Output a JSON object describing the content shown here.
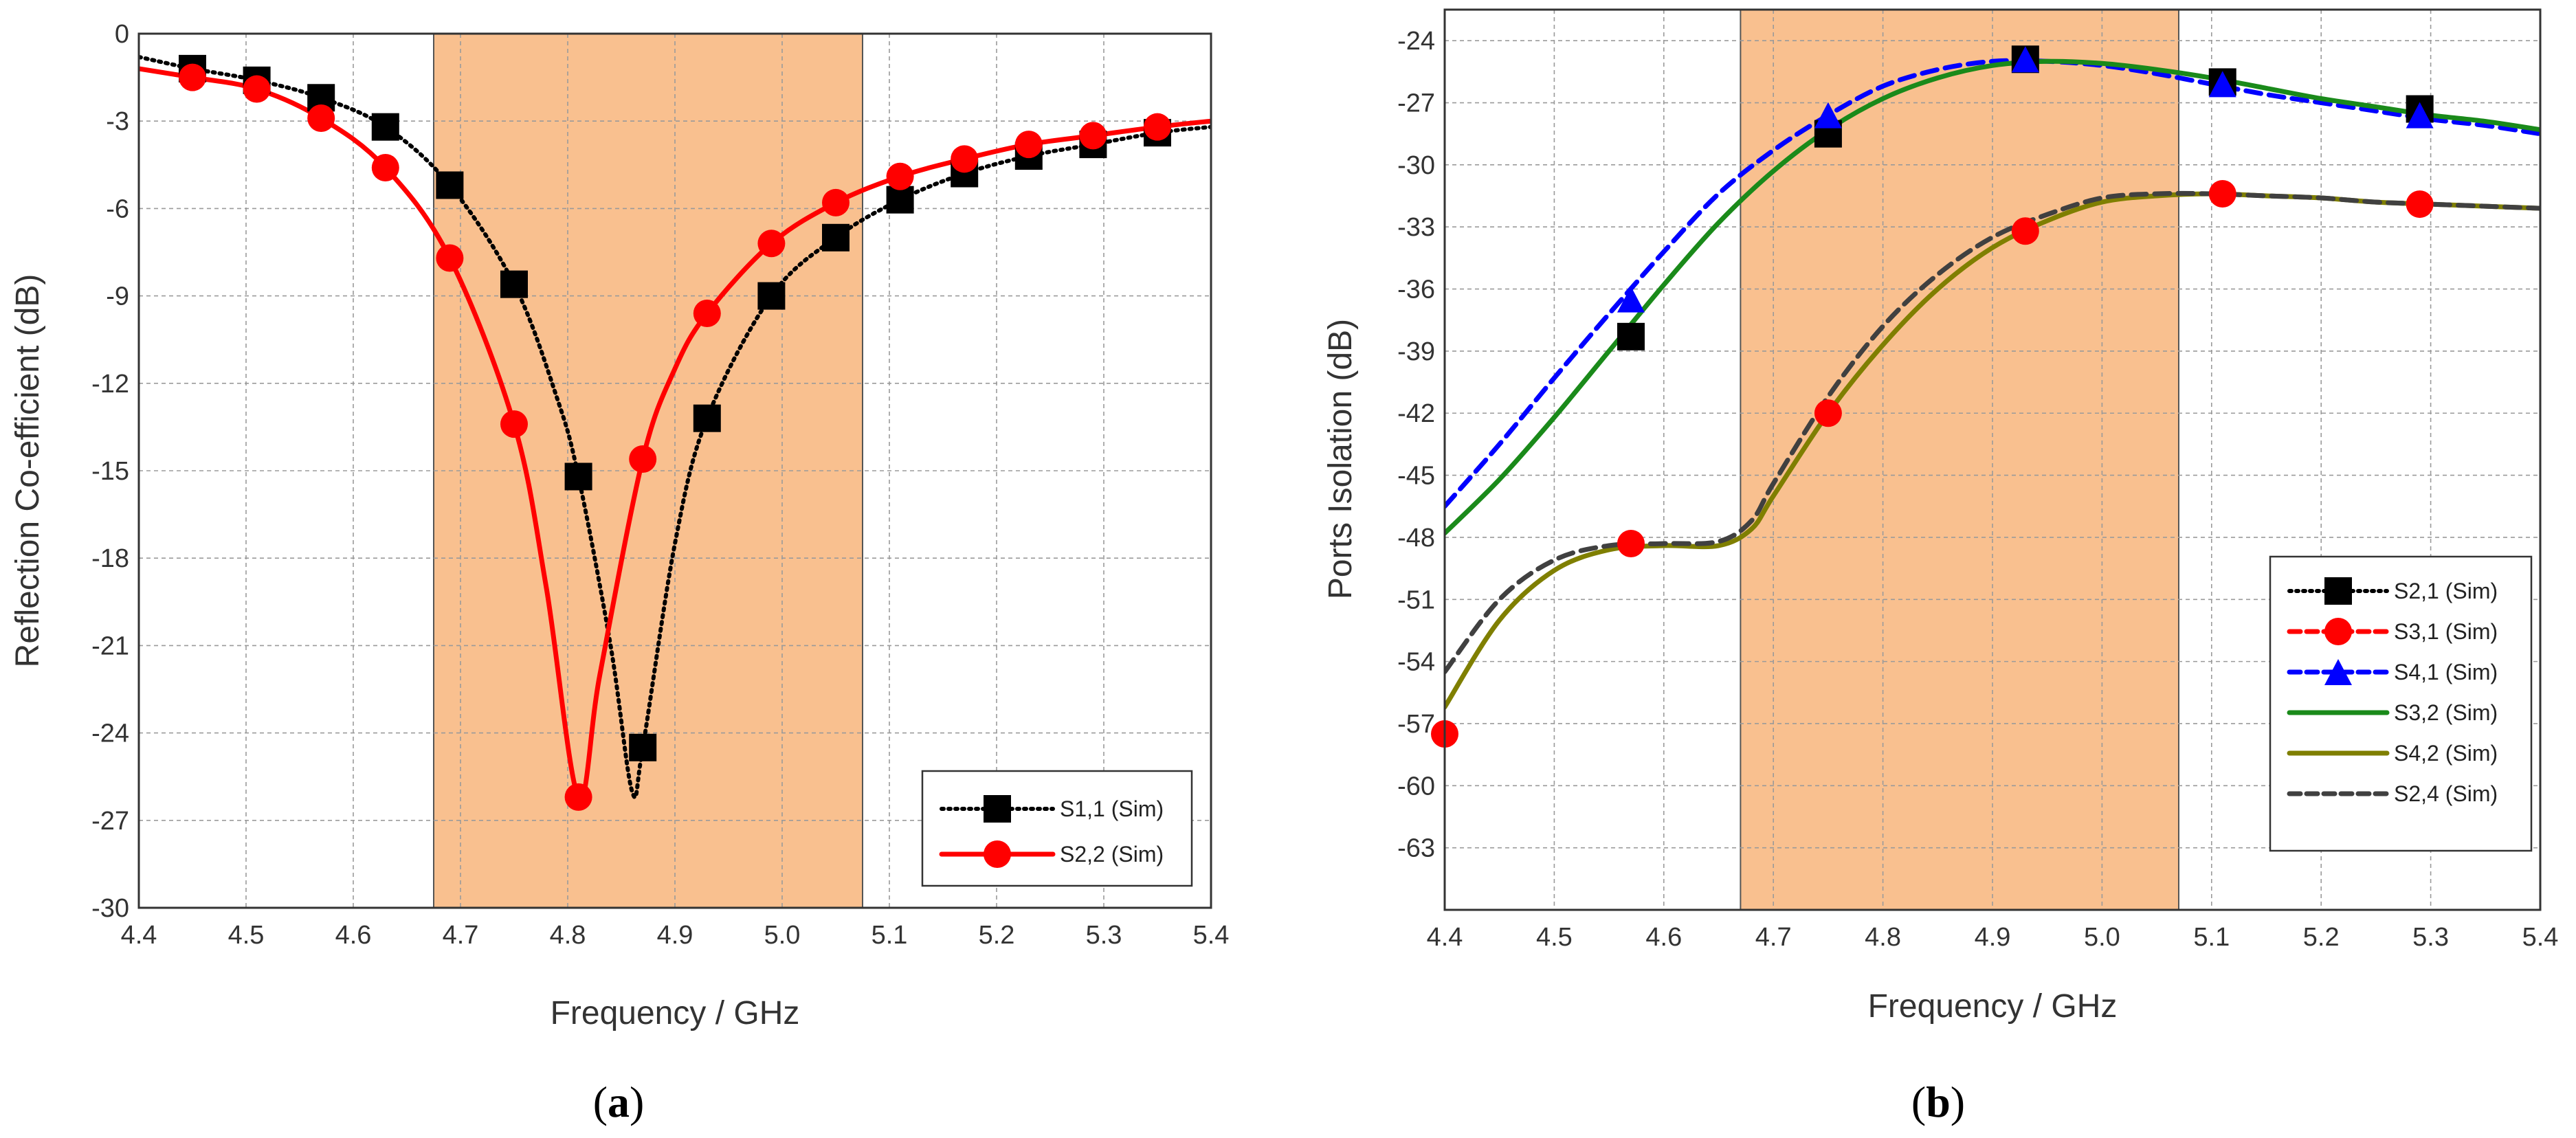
{
  "chart_data": [
    {
      "type": "line",
      "panel_label": "a",
      "xlabel": "Frequency / GHz",
      "ylabel": "Reflection Co-efficient (dB)",
      "xlim": [
        4.4,
        5.4
      ],
      "ylim": [
        -30,
        0
      ],
      "x_ticks": [
        "4.4",
        "4.5",
        "4.6",
        "4.7",
        "4.8",
        "4.9",
        "5.0",
        "5.1",
        "5.2",
        "5.3",
        "5.4"
      ],
      "y_ticks": [
        "0",
        "-3",
        "-6",
        "-9",
        "-12",
        "-15",
        "-18",
        "-21",
        "-24",
        "-27",
        "-30"
      ],
      "grid": true,
      "highlight_band": {
        "x_start": 4.675,
        "x_end": 5.075,
        "color": "#f9c08f"
      },
      "legend_position": "bottom-right",
      "series": [
        {
          "name": "S1,1 (Sim)",
          "color": "#000000",
          "line_style": "dotted",
          "marker": "square",
          "x": [
            4.4,
            4.45,
            4.51,
            4.57,
            4.63,
            4.69,
            4.75,
            4.79,
            4.81,
            4.84,
            4.86,
            4.87,
            4.9,
            4.93,
            4.99,
            5.05,
            5.11,
            5.17,
            5.23,
            5.29,
            5.35,
            5.4
          ],
          "y": [
            -0.8,
            -1.2,
            -1.6,
            -2.2,
            -3.2,
            -5.2,
            -8.6,
            -12.5,
            -15.2,
            -21.0,
            -26.0,
            -24.5,
            -17.5,
            -13.2,
            -9.0,
            -7.0,
            -5.7,
            -4.8,
            -4.2,
            -3.8,
            -3.4,
            -3.2
          ],
          "marker_x": [
            4.45,
            4.51,
            4.57,
            4.63,
            4.69,
            4.75,
            4.81,
            4.87,
            4.93,
            4.99,
            5.05,
            5.11,
            5.17,
            5.23,
            5.29,
            5.35
          ],
          "marker_y": [
            -1.2,
            -1.6,
            -2.2,
            -3.2,
            -5.2,
            -8.6,
            -15.2,
            -24.5,
            -13.2,
            -9.0,
            -7.0,
            -5.7,
            -4.8,
            -4.2,
            -3.8,
            -3.4
          ]
        },
        {
          "name": "S2,2 (Sim)",
          "color": "#ff0000",
          "line_style": "solid",
          "marker": "circle",
          "x": [
            4.4,
            4.45,
            4.51,
            4.57,
            4.63,
            4.69,
            4.75,
            4.78,
            4.81,
            4.83,
            4.87,
            4.9,
            4.93,
            4.99,
            5.05,
            5.11,
            5.17,
            5.23,
            5.29,
            5.35,
            5.4
          ],
          "y": [
            -1.2,
            -1.5,
            -1.9,
            -2.9,
            -4.6,
            -7.7,
            -13.4,
            -19.0,
            -26.2,
            -22.0,
            -14.6,
            -11.5,
            -9.6,
            -7.2,
            -5.8,
            -4.9,
            -4.3,
            -3.8,
            -3.5,
            -3.2,
            -3.0
          ],
          "marker_x": [
            4.45,
            4.51,
            4.57,
            4.63,
            4.69,
            4.75,
            4.81,
            4.87,
            4.93,
            4.99,
            5.05,
            5.11,
            5.17,
            5.23,
            5.29,
            5.35
          ],
          "marker_y": [
            -1.5,
            -1.9,
            -2.9,
            -4.6,
            -7.7,
            -13.4,
            -26.2,
            -14.6,
            -9.6,
            -7.2,
            -5.8,
            -4.9,
            -4.3,
            -3.8,
            -3.5,
            -3.2
          ]
        }
      ]
    },
    {
      "type": "line",
      "panel_label": "b",
      "xlabel": "Frequency / GHz",
      "ylabel": "Ports Isolation (dB)",
      "xlim": [
        4.4,
        5.4
      ],
      "ylim": [
        -66,
        -22.5
      ],
      "x_ticks": [
        "4.4",
        "4.5",
        "4.6",
        "4.7",
        "4.8",
        "4.9",
        "5.0",
        "5.1",
        "5.2",
        "5.3",
        "5.4"
      ],
      "y_ticks": [
        "-24",
        "-27",
        "-30",
        "-33",
        "-36",
        "-39",
        "-42",
        "-45",
        "-48",
        "-51",
        "-54",
        "-57",
        "-60",
        "-63"
      ],
      "grid": true,
      "highlight_band": {
        "x_start": 4.67,
        "x_end": 5.07,
        "color": "#f9c08f"
      },
      "legend_position": "right",
      "series": [
        {
          "name": "S2,1 (Sim)",
          "color": "#000000",
          "line_style": "dotted",
          "marker": "square",
          "x": [],
          "y": [],
          "marker_x": [
            4.57,
            4.75,
            4.93,
            5.11,
            5.29
          ],
          "marker_y": [
            -38.3,
            -28.5,
            -24.9,
            -26.0,
            -27.3
          ]
        },
        {
          "name": "S3,1 (Sim)",
          "color": "#ff0000",
          "line_style": "dashed",
          "marker": "circle",
          "x": [],
          "y": [],
          "marker_x": [
            4.4,
            4.57,
            4.75,
            4.93,
            5.11,
            5.29
          ],
          "marker_y": [
            -57.5,
            -48.3,
            -42.0,
            -33.2,
            -31.4,
            -31.9
          ]
        },
        {
          "name": "S4,1 (Sim)",
          "color": "#0000ff",
          "line_style": "dashed",
          "marker": "triangle",
          "x": [
            4.4,
            4.45,
            4.5,
            4.55,
            4.6,
            4.65,
            4.7,
            4.75,
            4.8,
            4.85,
            4.9,
            4.95,
            5.0,
            5.05,
            5.1,
            5.15,
            5.2,
            5.25,
            5.3,
            5.35,
            5.4
          ],
          "y": [
            -46.5,
            -43.5,
            -40.3,
            -37.2,
            -34.2,
            -31.4,
            -29.3,
            -27.6,
            -26.2,
            -25.4,
            -25.0,
            -25.0,
            -25.2,
            -25.6,
            -26.1,
            -26.6,
            -27.0,
            -27.4,
            -27.8,
            -28.1,
            -28.5
          ],
          "marker_x": [
            4.57,
            4.75,
            4.93,
            5.11,
            5.29
          ],
          "marker_y": [
            -36.5,
            -27.6,
            -24.9,
            -26.1,
            -27.6
          ]
        },
        {
          "name": "S3,2 (Sim)",
          "color": "#1a8a1a",
          "line_style": "solid",
          "marker": "none",
          "x": [
            4.4,
            4.45,
            4.5,
            4.55,
            4.6,
            4.65,
            4.7,
            4.75,
            4.8,
            4.85,
            4.9,
            4.95,
            5.0,
            5.05,
            5.1,
            5.15,
            5.2,
            5.25,
            5.3,
            5.35,
            5.4
          ],
          "y": [
            -47.8,
            -45.2,
            -42.2,
            -39.0,
            -35.8,
            -32.8,
            -30.3,
            -28.3,
            -26.8,
            -25.8,
            -25.2,
            -25.0,
            -25.1,
            -25.4,
            -25.8,
            -26.3,
            -26.8,
            -27.2,
            -27.6,
            -27.9,
            -28.3
          ]
        },
        {
          "name": "S4,2 (Sim)",
          "color": "#7f7f00",
          "line_style": "solid",
          "marker": "none",
          "x": [
            4.4,
            4.45,
            4.5,
            4.55,
            4.6,
            4.65,
            4.68,
            4.7,
            4.75,
            4.8,
            4.85,
            4.9,
            4.95,
            5.0,
            5.05,
            5.1,
            5.15,
            5.2,
            5.25,
            5.3,
            5.35,
            5.4
          ],
          "y": [
            -56.2,
            -52.0,
            -49.6,
            -48.6,
            -48.4,
            -48.4,
            -47.6,
            -46.0,
            -42.0,
            -38.7,
            -36.0,
            -34.0,
            -32.7,
            -31.8,
            -31.5,
            -31.4,
            -31.5,
            -31.6,
            -31.8,
            -31.9,
            -32.0,
            -32.1
          ]
        },
        {
          "name": "S2,4 (Sim)",
          "color": "#404040",
          "line_style": "dashed",
          "marker": "none",
          "x": [
            4.4,
            4.45,
            4.5,
            4.55,
            4.6,
            4.65,
            4.68,
            4.7,
            4.75,
            4.8,
            4.85,
            4.9,
            4.95,
            5.0,
            5.05,
            5.1,
            5.15,
            5.2,
            5.25,
            5.3,
            5.35,
            5.4
          ],
          "y": [
            -54.5,
            -51.0,
            -49.1,
            -48.4,
            -48.3,
            -48.2,
            -47.2,
            -45.4,
            -41.2,
            -37.8,
            -35.3,
            -33.5,
            -32.4,
            -31.6,
            -31.4,
            -31.4,
            -31.5,
            -31.6,
            -31.8,
            -31.9,
            -32.0,
            -32.1
          ]
        }
      ]
    }
  ]
}
